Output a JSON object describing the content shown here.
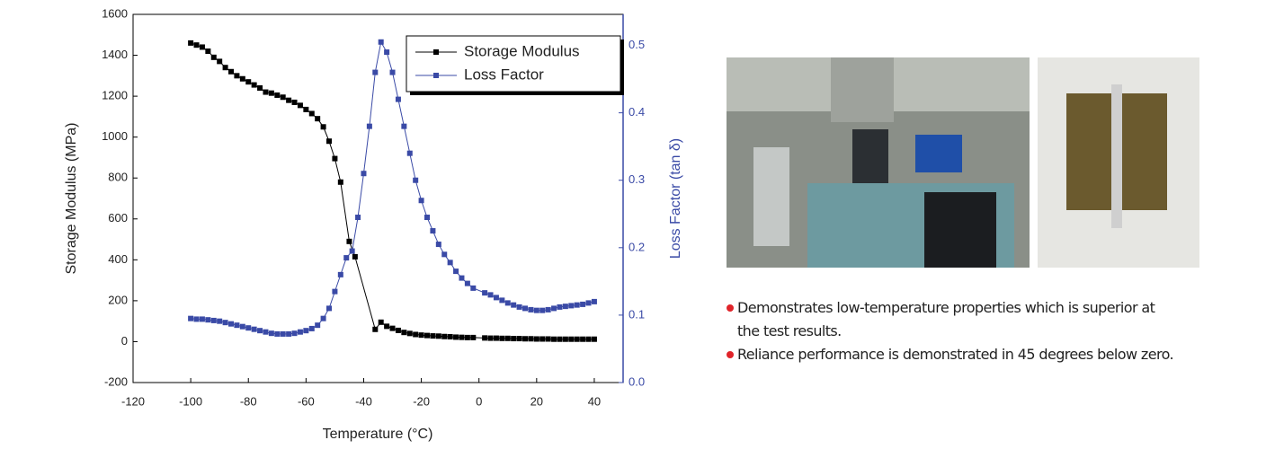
{
  "chart_data": {
    "type": "line",
    "x_label": "Temperature (°C)",
    "y_label": "Storage  Modulus  (MPa)",
    "y2_label": "Loss  Factor  (tan δ)",
    "xlim": [
      -120,
      50
    ],
    "xticks": [
      -120,
      -100,
      -80,
      -60,
      -40,
      -20,
      0,
      20,
      40
    ],
    "ylim": [
      -200,
      1600
    ],
    "yticks": [
      -200,
      0,
      200,
      400,
      600,
      800,
      1000,
      1200,
      1400,
      1600
    ],
    "y2lim": [
      0,
      0.546
    ],
    "y2ticks": [
      {
        "value": 0,
        "label": "0.0"
      },
      0.1,
      0.2,
      0.3,
      0.4,
      0.5
    ],
    "legend": "upper right",
    "series": [
      {
        "name": "Storage Modulus",
        "color": "#000000",
        "x": [
          -100,
          -98,
          -96,
          -94,
          -92,
          -90,
          -88,
          -86,
          -84,
          -82,
          -80,
          -78,
          -76,
          -74,
          -72,
          -70,
          -68,
          -66,
          -64,
          -62,
          -60,
          -58,
          -56,
          -54,
          -52,
          -50,
          -48,
          -45,
          -43,
          -36,
          -34,
          -32,
          -30,
          -28,
          -26,
          -24,
          -22,
          -20,
          -18,
          -16,
          -14,
          -12,
          -10,
          -8,
          -6,
          -4,
          -2,
          2,
          4,
          6,
          8,
          10,
          12,
          14,
          16,
          18,
          20,
          22,
          24,
          26,
          28,
          30,
          32,
          34,
          36,
          38,
          40
        ],
        "values": [
          1460,
          1450,
          1440,
          1420,
          1390,
          1370,
          1340,
          1320,
          1300,
          1285,
          1270,
          1255,
          1240,
          1220,
          1215,
          1205,
          1195,
          1180,
          1170,
          1155,
          1135,
          1115,
          1090,
          1050,
          980,
          895,
          780,
          490,
          415,
          60,
          95,
          75,
          65,
          55,
          45,
          40,
          35,
          32,
          30,
          28,
          27,
          25,
          24,
          22,
          21,
          20,
          20,
          18,
          17,
          17,
          16,
          16,
          15,
          15,
          14,
          14,
          13,
          13,
          13,
          12,
          12,
          12,
          12,
          12,
          12,
          12,
          12
        ]
      },
      {
        "name": "Loss Factor",
        "color": "#3a4aa6",
        "axis": "y2",
        "x": [
          -100,
          -98,
          -96,
          -94,
          -92,
          -90,
          -88,
          -86,
          -84,
          -82,
          -80,
          -78,
          -76,
          -74,
          -72,
          -70,
          -68,
          -66,
          -64,
          -62,
          -60,
          -58,
          -56,
          -54,
          -52,
          -50,
          -48,
          -46,
          -44,
          -42,
          -40,
          -38,
          -36,
          -34,
          -32,
          -30,
          -28,
          -26,
          -24,
          -22,
          -20,
          -18,
          -16,
          -14,
          -12,
          -10,
          -8,
          -6,
          -4,
          -2,
          2,
          4,
          6,
          8,
          10,
          12,
          14,
          16,
          18,
          20,
          22,
          24,
          26,
          28,
          30,
          32,
          34,
          36,
          38,
          40
        ],
        "values": [
          0.095,
          0.094,
          0.094,
          0.093,
          0.092,
          0.091,
          0.089,
          0.087,
          0.085,
          0.083,
          0.081,
          0.079,
          0.077,
          0.075,
          0.073,
          0.072,
          0.072,
          0.072,
          0.073,
          0.075,
          0.077,
          0.08,
          0.085,
          0.095,
          0.11,
          0.135,
          0.16,
          0.185,
          0.195,
          0.245,
          0.31,
          0.38,
          0.46,
          0.505,
          0.49,
          0.46,
          0.42,
          0.38,
          0.34,
          0.3,
          0.27,
          0.245,
          0.225,
          0.205,
          0.19,
          0.178,
          0.165,
          0.155,
          0.147,
          0.14,
          0.133,
          0.13,
          0.126,
          0.122,
          0.118,
          0.115,
          0.112,
          0.11,
          0.108,
          0.107,
          0.107,
          0.108,
          0.11,
          0.112,
          0.113,
          0.114,
          0.115,
          0.116,
          0.118,
          0.12
        ]
      }
    ]
  },
  "bullets": [
    "Demonstrates low-temperature properties which is superior at the test results.",
    "Reliance performance is demonstrated in 45 degrees below zero."
  ]
}
